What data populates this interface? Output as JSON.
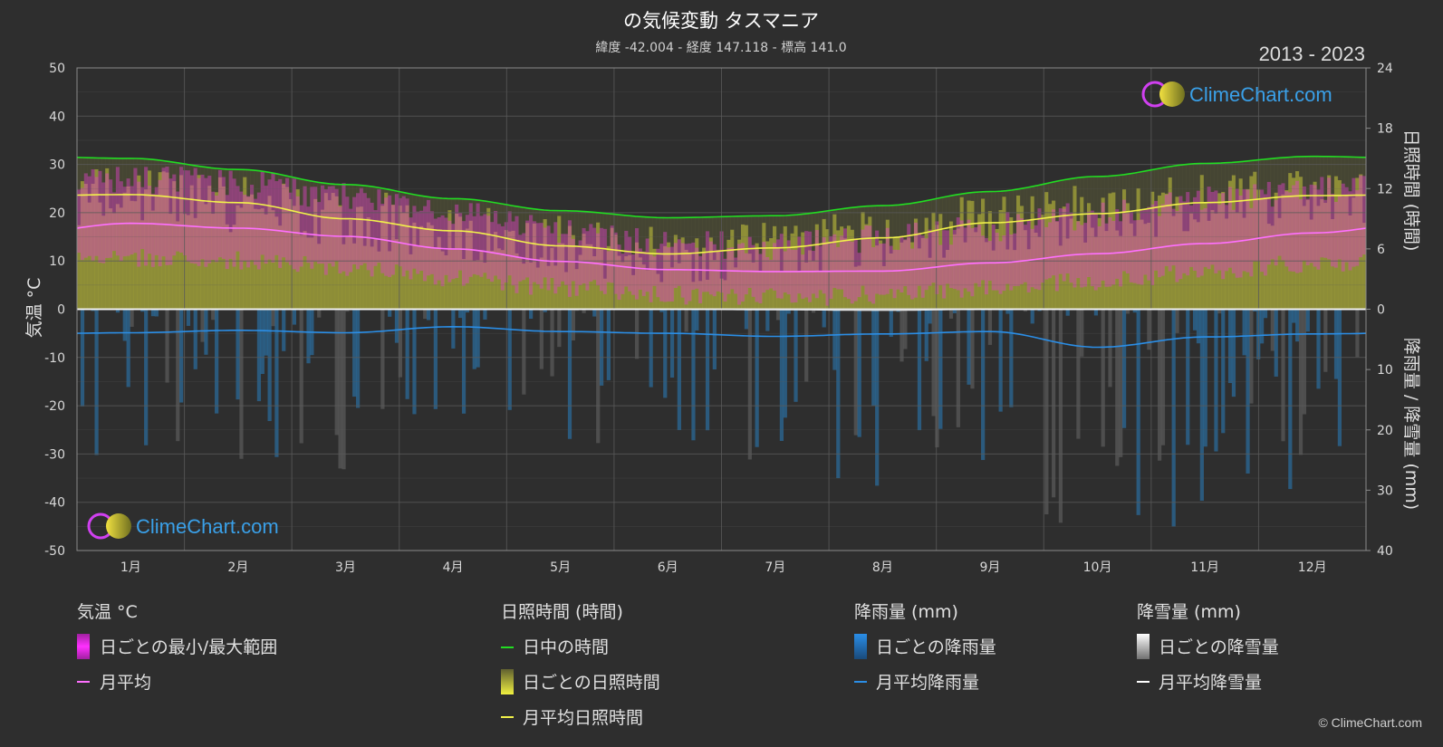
{
  "title": "の気候変動 タスマニア",
  "subtitle": "緯度 -42.004 - 経度 147.118 - 標高 141.0",
  "year_range": "2013 - 2023",
  "brand": "ClimeChart.com",
  "copyright": "© ClimeChart.com",
  "colors": {
    "background": "#2e2e2e",
    "grid": "#5a5a5a",
    "temp_range": "#e040c8",
    "temp_avg": "#ff70ff",
    "daylight": "#22dd22",
    "sunshine_daily": "#c8c83a",
    "sunshine_avg": "#f2f24a",
    "rain_daily": "#2a7fc0",
    "rain_avg": "#2b8ee6",
    "snow_avg": "#ffffff"
  },
  "legend": {
    "temp_header": "気温 °C",
    "temp_range": "日ごとの最小/最大範囲",
    "temp_avg": "月平均",
    "sun_header": "日照時間 (時間)",
    "daylight": "日中の時間",
    "sunshine_daily": "日ごとの日照時間",
    "sunshine_avg": "月平均日照時間",
    "rain_header": "降雨量 (mm)",
    "rain_daily": "日ごとの降雨量",
    "rain_avg": "月平均降雨量",
    "snow_header": "降雪量 (mm)",
    "snow_daily": "日ごとの降雪量",
    "snow_avg": "月平均降雪量"
  },
  "chart_data": {
    "type": "line",
    "categories": [
      "1月",
      "2月",
      "3月",
      "4月",
      "5月",
      "6月",
      "7月",
      "8月",
      "9月",
      "10月",
      "11月",
      "12月"
    ],
    "y_left": {
      "label": "気温 °C",
      "range": [
        -50,
        50
      ],
      "ticks": [
        50,
        40,
        30,
        20,
        10,
        0,
        -10,
        -20,
        -30,
        -40,
        -50
      ]
    },
    "y_right_top": {
      "label": "日照時間 (時間)",
      "range": [
        0,
        24
      ],
      "ticks": [
        24,
        18,
        12,
        6,
        0
      ]
    },
    "y_right_bottom": {
      "label": "降雨量 / 降雪量 (mm)",
      "range": [
        0,
        40
      ],
      "ticks": [
        0,
        10,
        20,
        30,
        40
      ]
    },
    "grid": true,
    "series": [
      {
        "name": "日中の時間",
        "axis": "hours",
        "values": [
          15.0,
          13.9,
          12.4,
          11.0,
          9.8,
          9.1,
          9.3,
          10.3,
          11.7,
          13.2,
          14.5,
          15.2
        ]
      },
      {
        "name": "月平均日照時間",
        "axis": "hours",
        "values": [
          11.4,
          10.6,
          9.0,
          7.8,
          6.3,
          5.5,
          6.1,
          7.1,
          8.6,
          9.5,
          10.6,
          11.3
        ]
      },
      {
        "name": "月平均",
        "axis": "temp",
        "values": [
          17.8,
          16.8,
          15.1,
          12.5,
          9.9,
          8.2,
          7.8,
          7.9,
          9.6,
          11.5,
          13.6,
          15.8
        ]
      },
      {
        "name": "月平均降雨量",
        "axis": "mm",
        "values": [
          3.9,
          3.5,
          3.9,
          2.9,
          3.7,
          4.0,
          4.5,
          4.1,
          3.7,
          6.3,
          4.6,
          4.1
        ]
      },
      {
        "name": "月平均降雪量",
        "axis": "mm",
        "values": [
          0,
          0,
          0,
          0,
          0,
          0,
          0.1,
          0.2,
          0,
          0,
          0,
          0
        ]
      }
    ],
    "temp_range_band": {
      "name": "日ごとの最小/最大範囲",
      "min": [
        10.5,
        10.0,
        8.8,
        6.5,
        4.5,
        3.0,
        2.5,
        3.0,
        4.2,
        5.8,
        7.5,
        9.5
      ],
      "max": [
        27.0,
        26.0,
        23.5,
        19.5,
        16.0,
        13.5,
        13.0,
        14.5,
        17.0,
        19.5,
        22.5,
        25.0
      ]
    }
  }
}
